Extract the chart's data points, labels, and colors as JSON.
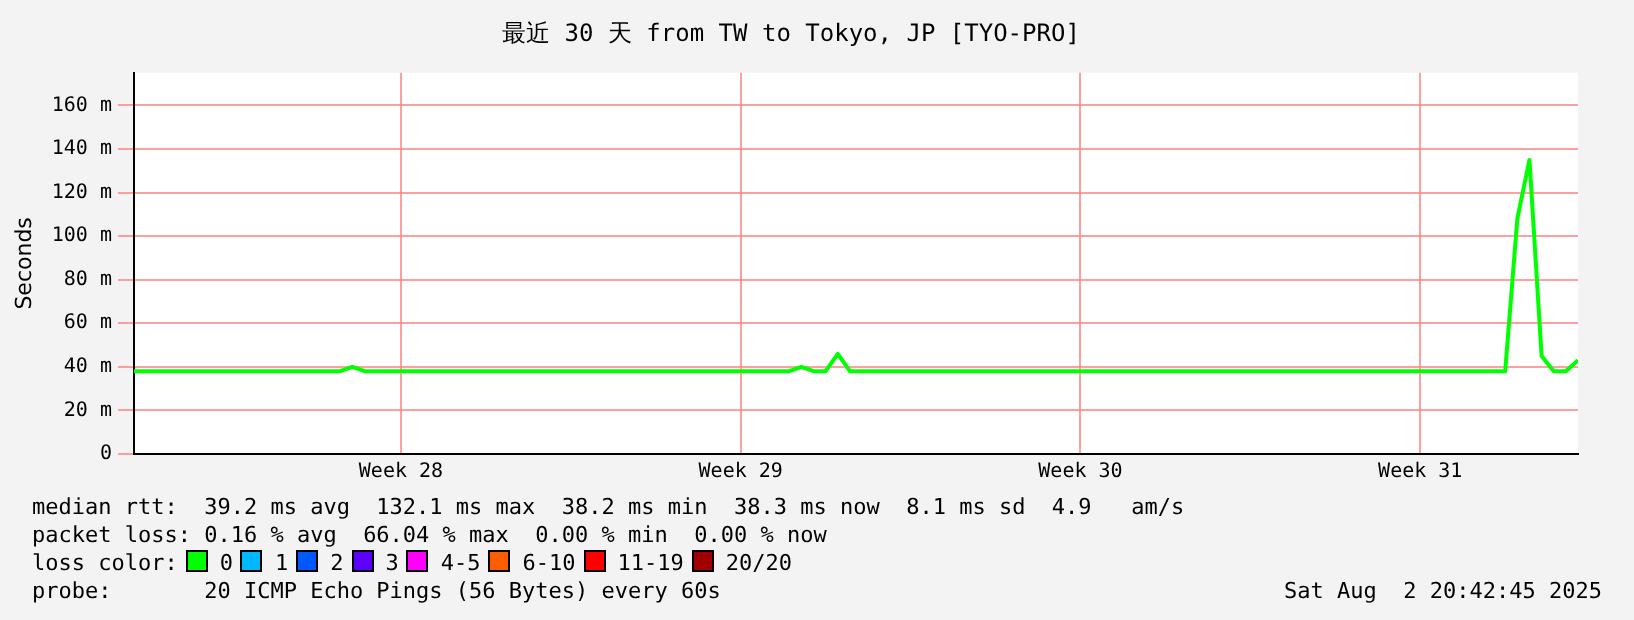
{
  "chart_data": {
    "type": "line",
    "title": "最近 30 天 from TW to Tokyo, JP [TYO-PRO]",
    "ylabel": "Seconds",
    "categories": [
      null,
      null,
      null,
      null,
      null,
      null,
      null,
      null,
      null,
      null,
      null,
      null,
      null,
      null,
      null,
      null,
      null,
      null,
      null,
      null,
      null,
      null,
      "Week 28",
      null,
      null,
      null,
      null,
      null,
      null,
      null,
      null,
      null,
      null,
      null,
      null,
      null,
      null,
      null,
      null,
      null,
      null,
      null,
      null,
      null,
      null,
      null,
      null,
      null,
      null,
      null,
      "Week 29",
      null,
      null,
      null,
      null,
      null,
      null,
      null,
      null,
      null,
      null,
      null,
      null,
      null,
      null,
      null,
      null,
      null,
      null,
      null,
      null,
      null,
      null,
      null,
      null,
      null,
      null,
      null,
      "Week 30",
      null,
      null,
      null,
      null,
      null,
      null,
      null,
      null,
      null,
      null,
      null,
      null,
      null,
      null,
      null,
      null,
      null,
      null,
      null,
      null,
      null,
      null,
      null,
      null,
      null,
      null,
      null,
      "Week 31",
      null,
      null,
      null,
      null,
      null,
      null,
      null,
      null,
      null,
      null,
      null,
      null,
      null
    ],
    "ylim": [
      0,
      175
    ],
    "yticks": [
      {
        "value": 0,
        "label": "0"
      },
      {
        "value": 20,
        "label": "20 m"
      },
      {
        "value": 40,
        "label": "40 m"
      },
      {
        "value": 60,
        "label": "60 m"
      },
      {
        "value": 80,
        "label": "80 m"
      },
      {
        "value": 100,
        "label": "100 m"
      },
      {
        "value": 120,
        "label": "120 m"
      },
      {
        "value": 140,
        "label": "140 m"
      },
      {
        "value": 160,
        "label": "160 m"
      }
    ],
    "grid": true,
    "legend": false,
    "marker": "none",
    "line_style": "solid",
    "series": [
      {
        "color": "#00ff00",
        "values": [
          38,
          38,
          38,
          38,
          38,
          38,
          38,
          38,
          38,
          38,
          38,
          38,
          38,
          38,
          38,
          38,
          38,
          38,
          40,
          38,
          38,
          38,
          38,
          38,
          38,
          38,
          38,
          38,
          38,
          38,
          38,
          38,
          38,
          38,
          38,
          38,
          38,
          38,
          38,
          38,
          38,
          38,
          38,
          38,
          38,
          38,
          38,
          38,
          38,
          38,
          38,
          38,
          38,
          38,
          38,
          40,
          38,
          38,
          46,
          38,
          38,
          38,
          38,
          38,
          38,
          38,
          38,
          38,
          38,
          38,
          38,
          38,
          38,
          38,
          38,
          38,
          38,
          38,
          38,
          38,
          38,
          38,
          38,
          38,
          38,
          38,
          38,
          38,
          38,
          38,
          38,
          38,
          38,
          38,
          38,
          38,
          38,
          38,
          38,
          38,
          38,
          38,
          38,
          38,
          38,
          38,
          38,
          38,
          38,
          38,
          38,
          38,
          38,
          38,
          108,
          135,
          45,
          38,
          38,
          43
        ]
      }
    ],
    "annotations": [
      "median rtt:  39.2 ms avg  132.1 ms max  38.2 ms min  38.3 ms now  8.1 ms sd  4.9   am/s",
      "packet loss: 0.16 % avg  66.04 % max  0.00 % min  0.00 % now",
      "loss color:",
      "0",
      "1",
      "2",
      "3",
      "4-5",
      "6-10",
      "11-19",
      "20/20",
      "probe:       20 ICMP Echo Pings (56 Bytes) every 60s",
      "Sat Aug  2 20:42:45 2025"
    ]
  }
}
